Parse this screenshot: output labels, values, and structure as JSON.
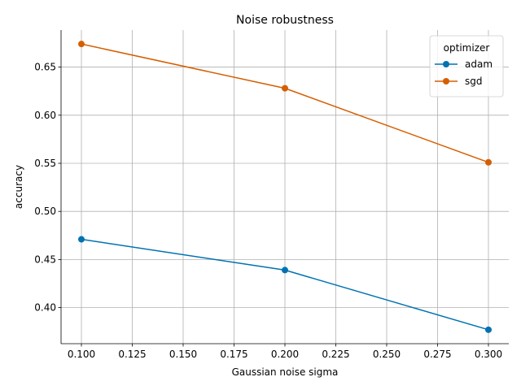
{
  "chart_data": {
    "type": "line",
    "title": "Noise robustness",
    "xlabel": "Gaussian noise sigma",
    "ylabel": "accuracy",
    "x": [
      0.1,
      0.2,
      0.3
    ],
    "xlim": [
      0.09,
      0.31
    ],
    "ylim": [
      0.3625,
      0.6885
    ],
    "xticks": [
      "0.100",
      "0.125",
      "0.150",
      "0.175",
      "0.200",
      "0.225",
      "0.250",
      "0.275",
      "0.300"
    ],
    "yticks": [
      "0.40",
      "0.45",
      "0.50",
      "0.55",
      "0.60",
      "0.65"
    ],
    "grid": true,
    "legend": {
      "title": "optimizer",
      "placement": "top-right"
    },
    "series": [
      {
        "name": "adam",
        "color": "#0072b2",
        "values": [
          0.471,
          0.439,
          0.377
        ]
      },
      {
        "name": "sgd",
        "color": "#d55e00",
        "values": [
          0.674,
          0.628,
          0.551
        ]
      }
    ]
  }
}
